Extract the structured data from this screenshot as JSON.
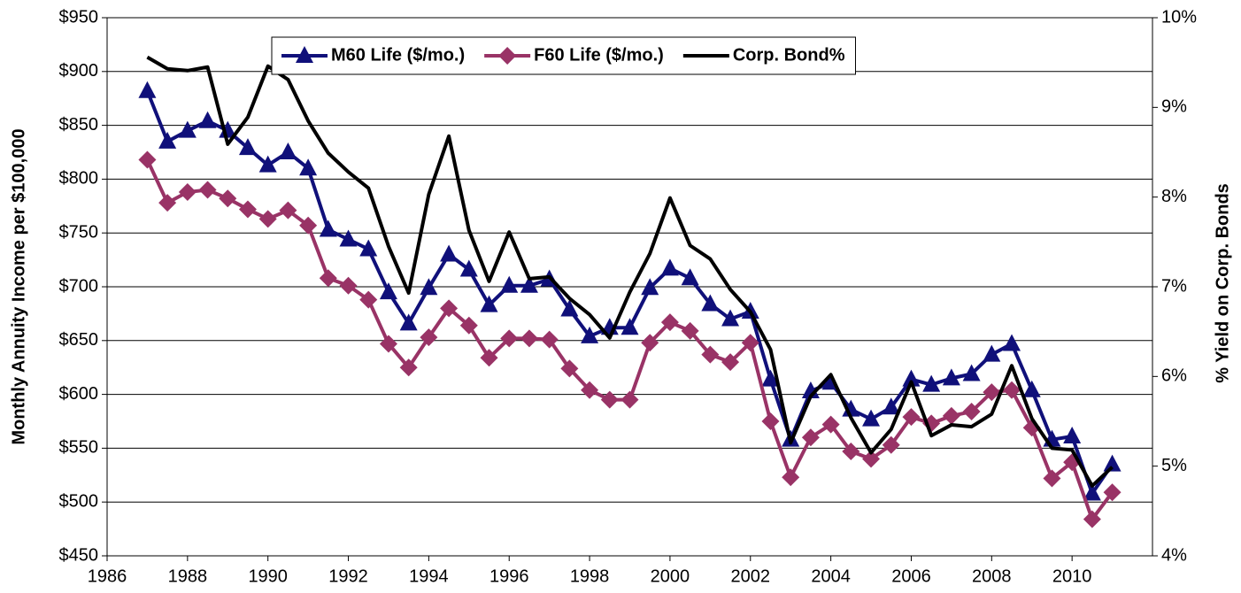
{
  "chart_data": {
    "type": "line",
    "y_axis_label": "Monthly Annuity Income per $100,000",
    "y2_axis_label": "% Yield on Corp. Bonds",
    "x": [
      1987,
      1987.5,
      1988,
      1988.5,
      1989,
      1989.5,
      1990,
      1990.5,
      1991,
      1991.5,
      1992,
      1992.5,
      1993,
      1993.5,
      1994,
      1994.5,
      1995,
      1995.5,
      1996,
      1996.5,
      1997,
      1997.5,
      1998,
      1998.5,
      1999,
      1999.5,
      2000,
      2000.5,
      2001,
      2001.5,
      2002,
      2002.5,
      2003,
      2003.5,
      2004,
      2004.5,
      2005,
      2005.5,
      2006,
      2006.5,
      2007,
      2007.5,
      2008,
      2008.5,
      2009,
      2009.5,
      2010,
      2010.5,
      2011
    ],
    "series": [
      {
        "name": "M60 Life ($/mo.)",
        "color": "#10107a",
        "marker": "triangle",
        "values": [
          882,
          835,
          845,
          854,
          845,
          829,
          813,
          825,
          810,
          753,
          744,
          735,
          695,
          666,
          699,
          730,
          716,
          683,
          701,
          701,
          707,
          679,
          654,
          662,
          662,
          699,
          717,
          708,
          684,
          670,
          677,
          614,
          558,
          603,
          611,
          586,
          577,
          588,
          614,
          609,
          615,
          619,
          637,
          647,
          604,
          558,
          561,
          508,
          535
        ]
      },
      {
        "name": "F60 Life ($/mo.)",
        "color": "#993366",
        "marker": "diamond",
        "values": [
          818,
          778,
          788,
          790,
          782,
          772,
          763,
          771,
          757,
          708,
          701,
          688,
          647,
          625,
          653,
          680,
          664,
          634,
          652,
          652,
          651,
          624,
          604,
          595,
          595,
          648,
          667,
          659,
          637,
          630,
          648,
          575,
          523,
          560,
          572,
          547,
          540,
          553,
          579,
          573,
          580,
          584,
          602,
          604,
          569,
          522,
          537,
          484,
          509
        ]
      },
      {
        "name": "Corp. Bond%",
        "color": "#000000",
        "axis": "y2",
        "values": [
          9.56,
          9.43,
          9.41,
          9.45,
          8.59,
          8.89,
          9.46,
          9.31,
          8.85,
          8.49,
          8.28,
          8.1,
          7.45,
          6.93,
          8.03,
          8.68,
          7.63,
          7.06,
          7.61,
          7.09,
          7.11,
          6.87,
          6.69,
          6.43,
          6.94,
          7.37,
          7.99,
          7.46,
          7.31,
          6.97,
          6.72,
          6.3,
          5.26,
          5.78,
          6.02,
          5.54,
          5.15,
          5.41,
          5.94,
          5.34,
          5.46,
          5.44,
          5.58,
          6.12,
          5.53,
          5.2,
          5.18,
          4.78,
          4.99
        ]
      }
    ],
    "xlim": [
      1986,
      2012
    ],
    "xticks": [
      1986,
      1988,
      1990,
      1992,
      1994,
      1996,
      1998,
      2000,
      2002,
      2004,
      2006,
      2008,
      2010
    ],
    "ylim": [
      450,
      950
    ],
    "yticks": [
      {
        "value": 450,
        "label": "$450"
      },
      {
        "value": 500,
        "label": "$500"
      },
      {
        "value": 550,
        "label": "$550"
      },
      {
        "value": 600,
        "label": "$600"
      },
      {
        "value": 650,
        "label": "$650"
      },
      {
        "value": 700,
        "label": "$700"
      },
      {
        "value": 750,
        "label": "$750"
      },
      {
        "value": 800,
        "label": "$800"
      },
      {
        "value": 850,
        "label": "$850"
      },
      {
        "value": 900,
        "label": "$900"
      },
      {
        "value": 950,
        "label": "$950"
      }
    ],
    "y2lim": [
      4,
      10
    ],
    "y2ticks": [
      {
        "value": 4,
        "label": "4%"
      },
      {
        "value": 5,
        "label": "5%"
      },
      {
        "value": 6,
        "label": "6%"
      },
      {
        "value": 7,
        "label": "7%"
      },
      {
        "value": 8,
        "label": "8%"
      },
      {
        "value": 9,
        "label": "9%"
      },
      {
        "value": 10,
        "label": "10%"
      }
    ],
    "grid": true,
    "legend": "top"
  }
}
